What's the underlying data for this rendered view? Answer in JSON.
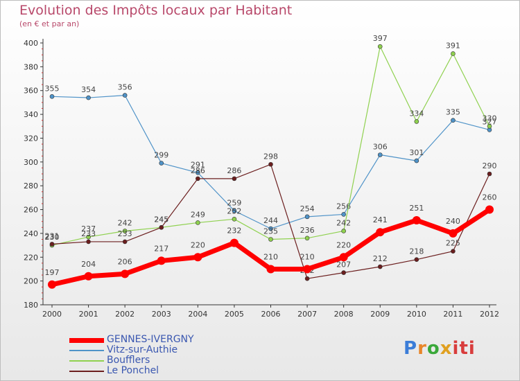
{
  "title": "Evolution des Impôts locaux par Habitant",
  "subtitle": "(en € et par an)",
  "chart_data": {
    "type": "line",
    "title": "Evolution des Impôts locaux par Habitant",
    "ylabel": "(en € et par an)",
    "xlabel": "",
    "x": [
      "2000",
      "2001",
      "2002",
      "2003",
      "2004",
      "2005",
      "2006",
      "2007",
      "2008",
      "2009",
      "2010",
      "2011",
      "2012"
    ],
    "ylim": [
      180,
      400
    ],
    "yticks": [
      180,
      200,
      220,
      240,
      260,
      280,
      300,
      320,
      340,
      360,
      380,
      400
    ],
    "series": [
      {
        "name": "Vitz-sur-Authie",
        "color": "#4f93c8",
        "values": [
          355,
          354,
          356,
          299,
          291,
          259,
          244,
          254,
          256,
          306,
          301,
          335,
          327
        ]
      },
      {
        "name": "Boufflers",
        "color": "#8fd14f",
        "values": [
          230,
          237,
          242,
          245,
          249,
          252,
          235,
          236,
          242,
          397,
          334,
          391,
          330
        ]
      },
      {
        "name": "Le Ponchel",
        "color": "#6b1e1e",
        "values": [
          231,
          233,
          233,
          245,
          286,
          286,
          298,
          202,
          207,
          212,
          218,
          225,
          290
        ]
      },
      {
        "name": "GENNES-IVERGNY",
        "color": "#ff0000",
        "values": [
          197,
          204,
          206,
          217,
          220,
          232,
          210,
          210,
          220,
          241,
          251,
          240,
          260
        ]
      }
    ],
    "legend_order": [
      "GENNES-IVERGNY",
      "Vitz-sur-Authie",
      "Boufflers",
      "Le Ponchel"
    ],
    "legend_position": "bottom-left"
  },
  "logo_letters": [
    "P",
    "r",
    "o",
    "x",
    "iti"
  ]
}
